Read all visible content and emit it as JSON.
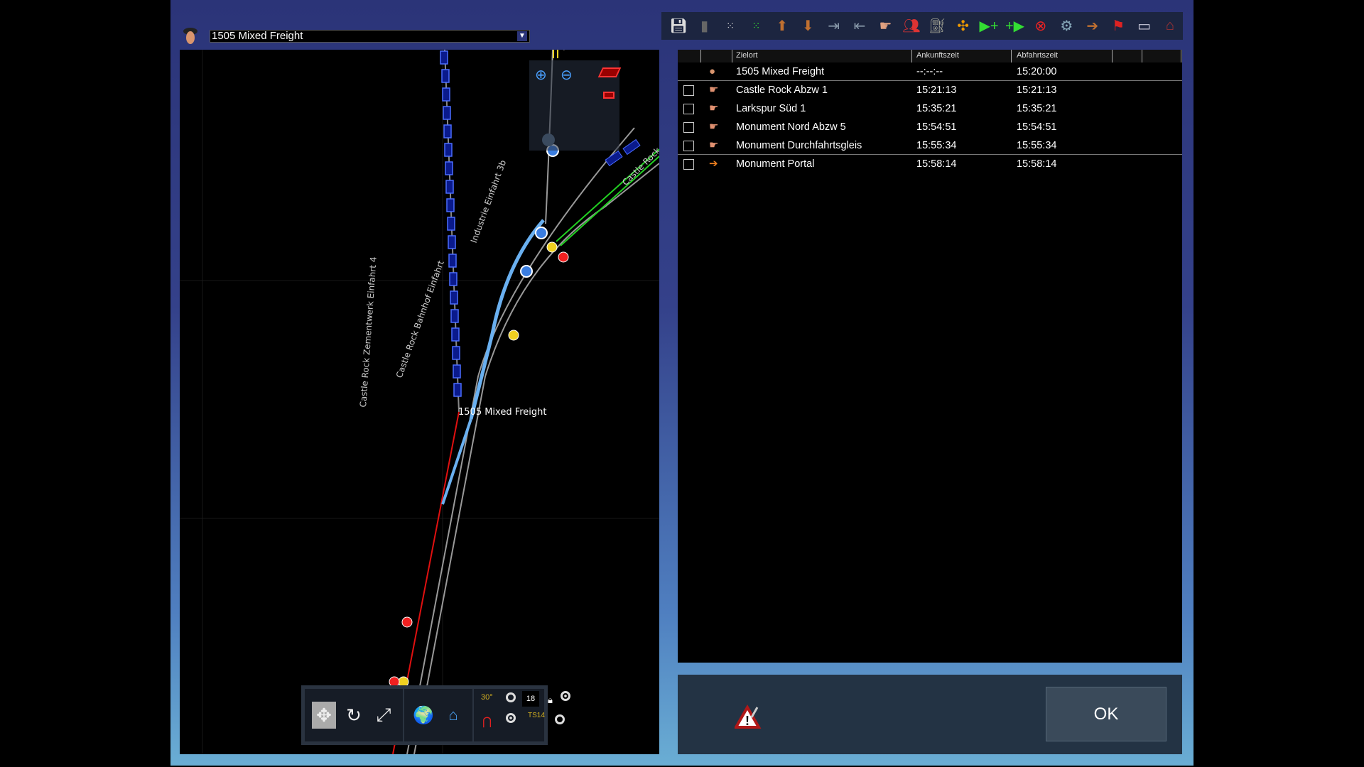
{
  "train_selector": {
    "selected": "1505 Mixed Freight"
  },
  "toolbar": {
    "icons": [
      "save-icon",
      "trash-icon",
      "grid-small-icon",
      "grid-green-icon",
      "move-up-icon",
      "move-down-icon",
      "insert-before-icon",
      "insert-after-icon",
      "drive-to-icon",
      "passengers-icon",
      "refuel-icon",
      "couple-icon",
      "add-before-icon",
      "add-after-icon",
      "delete-task-icon",
      "settings-icon",
      "portal-icon",
      "flag-icon",
      "display-icon",
      "station-icon"
    ]
  },
  "table": {
    "headers": {
      "destination": "Zielort",
      "arrival": "Ankunftszeit",
      "departure": "Abfahrtszeit"
    },
    "rows": [
      {
        "icon": "driver-icon",
        "destination": "1505 Mixed Freight",
        "arrival": "--:--:--",
        "departure": "15:20:00",
        "checkbox": false
      },
      {
        "icon": "hand-pointer-icon",
        "destination": "Castle Rock Abzw 1",
        "arrival": "15:21:13",
        "departure": "15:21:13",
        "checkbox": true
      },
      {
        "icon": "hand-pointer-icon",
        "destination": "Larkspur Süd 1",
        "arrival": "15:35:21",
        "departure": "15:35:21",
        "checkbox": true
      },
      {
        "icon": "hand-pointer-icon",
        "destination": "Monument Nord Abzw 5",
        "arrival": "15:54:51",
        "departure": "15:54:51",
        "checkbox": true
      },
      {
        "icon": "hand-pointer-icon",
        "destination": "Monument Durchfahrtsgleis",
        "arrival": "15:55:34",
        "departure": "15:55:34",
        "checkbox": true
      },
      {
        "icon": "portal-icon",
        "destination": "Monument Portal",
        "arrival": "15:58:14",
        "departure": "15:58:14",
        "checkbox": true
      }
    ]
  },
  "map": {
    "labels": {
      "l1": "Castle Rock Zementwerk Einfahrt 4",
      "l2": "Industrie Einfahrt 3b",
      "l3": "Castle Rock",
      "l4": "1505 Mixed Freight",
      "l5": "Castle Rock Bahnhof Einfahrt"
    },
    "toolbar": {
      "angle": "30°",
      "grid_value": "18",
      "ts_label": "TS14"
    }
  },
  "footer": {
    "ok_label": "OK"
  }
}
